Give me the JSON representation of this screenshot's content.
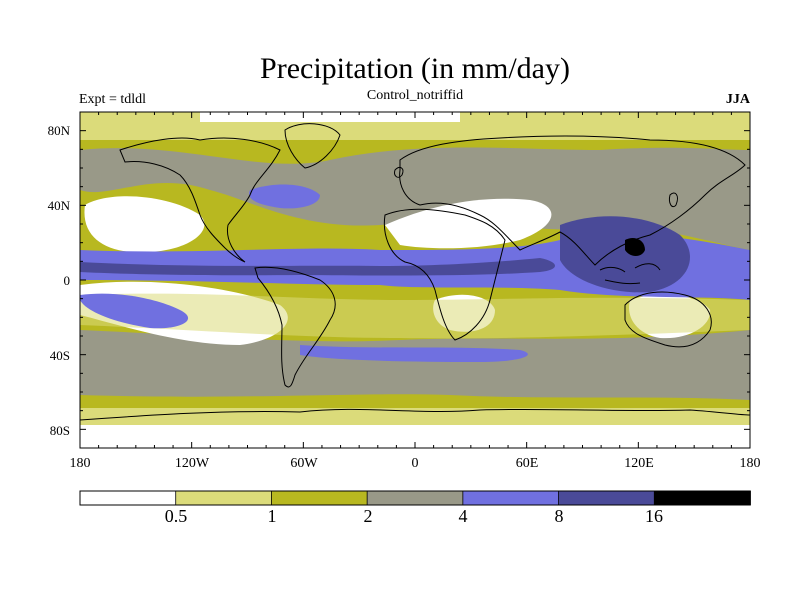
{
  "title": "Precipitation (in mm/day)",
  "left_label": "Expt = tdldl",
  "center_label": "Control_notriffid",
  "right_label": "JJA",
  "lat_ticks": [
    "80N",
    "40N",
    "0",
    "40S",
    "80S"
  ],
  "lon_ticks": [
    "180",
    "120W",
    "60W",
    "0",
    "60E",
    "120E",
    "180"
  ],
  "colorbar": {
    "levels": [
      "0.5",
      "1",
      "2",
      "4",
      "8",
      "16"
    ],
    "colors": [
      "#ffffff",
      "#dbdb7a",
      "#b8b820",
      "#999988",
      "#7070e0",
      "#4a4a98",
      "#000000"
    ]
  },
  "colors": {
    "dry": "#ffffff",
    "light": "#dbdb7a",
    "moderate": "#b8b820",
    "medium": "#999988",
    "wet": "#7070e0",
    "verywet": "#4a4a98",
    "extreme": "#000000",
    "coast": "#000000"
  }
}
